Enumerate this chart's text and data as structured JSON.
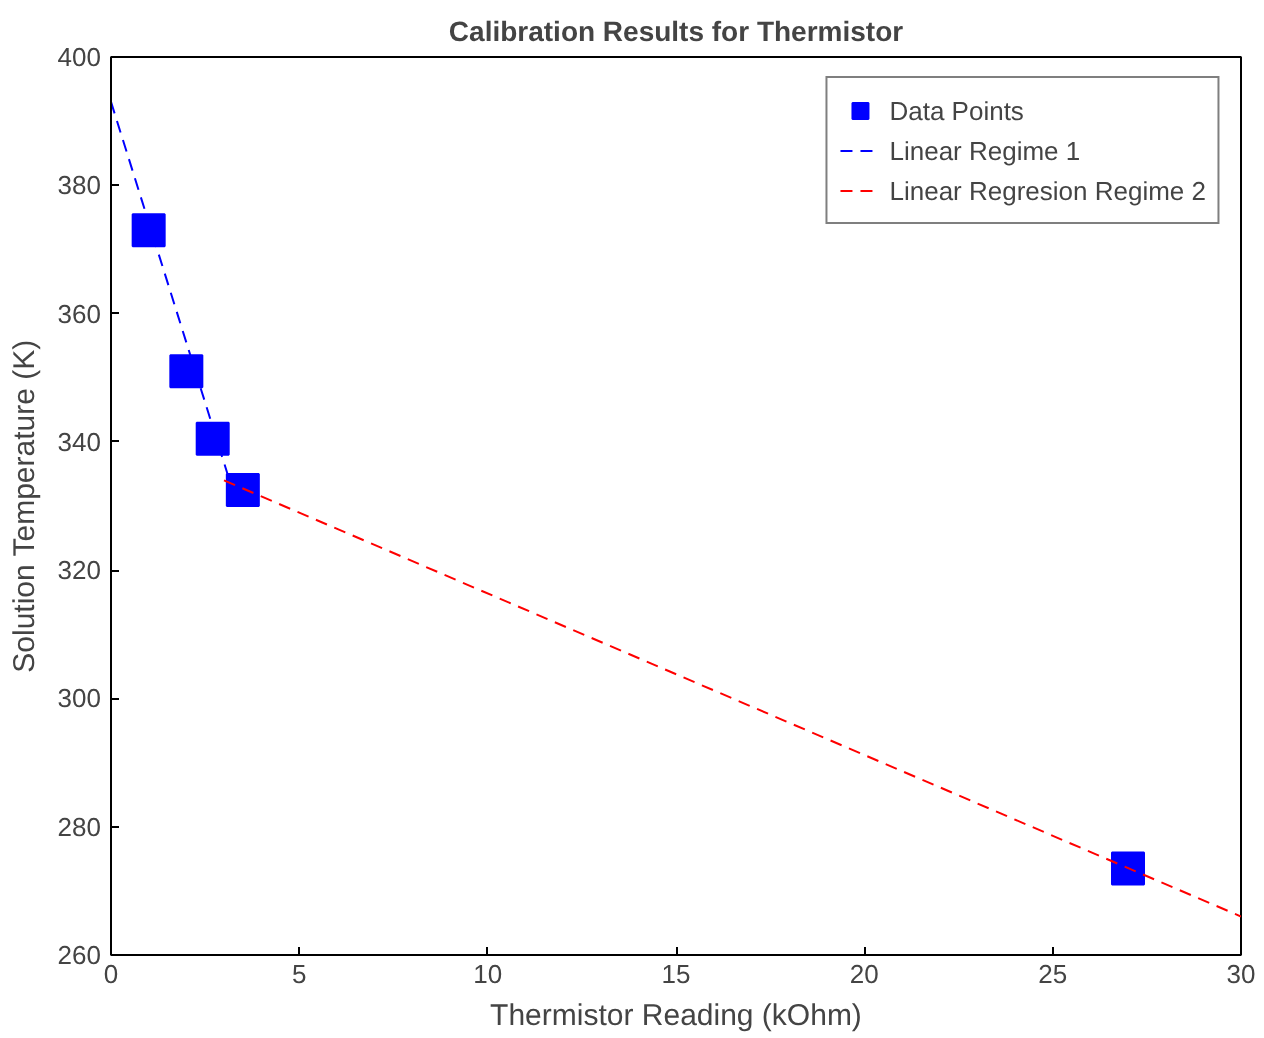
{
  "chart_data": {
    "type": "scatter",
    "title": "Calibration Results for Thermistor",
    "xlabel": "Thermistor Reading (kOhm)",
    "ylabel": "Solution Temperature (K)",
    "xlim": [
      0,
      30
    ],
    "ylim": [
      260,
      400
    ],
    "xticks": [
      0,
      5,
      10,
      15,
      20,
      25,
      30
    ],
    "yticks": [
      260,
      280,
      300,
      320,
      340,
      360,
      380,
      400
    ],
    "grid": false,
    "legend": "top right",
    "series": [
      {
        "name": "Data Points",
        "marker": "square",
        "color": "#0000ff",
        "x": [
          1.0,
          2.0,
          2.7,
          3.5,
          27.0
        ],
        "values": [
          373,
          351,
          340.5,
          332.5,
          273.5
        ]
      },
      {
        "name": "Linear Regime 1",
        "type": "line",
        "line_style": "dashed",
        "color": "#0000ff",
        "x": [
          0,
          3.2
        ],
        "values": [
          393,
          333
        ]
      },
      {
        "name": "Linear Regresion Regime 2",
        "type": "line",
        "line_style": "dashed",
        "color": "#ff0000",
        "x": [
          3.0,
          30
        ],
        "values": [
          334,
          266
        ]
      }
    ]
  }
}
